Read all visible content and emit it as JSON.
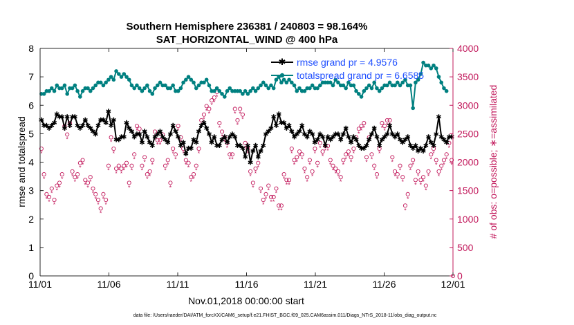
{
  "chart_data": {
    "type": "line",
    "title_line1": "Southern Hemisphere 236381 / 240803 = 98.164%",
    "title_line2": "SAT_HORIZONTAL_WIND @ 400 hPa",
    "xlabel": "Nov.01,2018 00:00:00 start",
    "ylabel_left": "rmse and totalspread",
    "ylabel_right": "# of obs: o=possible; ∗=assimilated",
    "footer": "data file: /Users/raeder/DAI/ATM_forcXX/CAM6_setup/f.e21.FHIST_BGC.f09_025.CAM6assim.011/Diags_NTrS_2018-11/obs_diag_output.nc",
    "xlim": [
      0,
      30
    ],
    "ylim_left": [
      0,
      8
    ],
    "ylim_right": [
      0,
      4000
    ],
    "x_ticks": [
      0,
      5,
      10,
      15,
      20,
      25,
      30
    ],
    "x_tick_labels": [
      "11/01",
      "11/06",
      "11/11",
      "11/16",
      "11/21",
      "11/26",
      "12/01"
    ],
    "y_left_ticks": [
      "0",
      "1",
      "2",
      "3",
      "4",
      "5",
      "6",
      "7",
      "8"
    ],
    "y_right_ticks": [
      "0",
      "500",
      "1000",
      "1500",
      "2000",
      "2500",
      "3000",
      "3500",
      "4000"
    ],
    "legend_placement": "top-right",
    "colors": {
      "rmse": "#000000",
      "spread": "#008080",
      "obs": "#c2185b",
      "axis_right": "#c2185b"
    },
    "series": [
      {
        "name": "rmse grand pr = 4.9576",
        "values": [
          5.5,
          5.3,
          5.3,
          5.2,
          5.3,
          5.4,
          5.7,
          5.6,
          5.6,
          5.2,
          5.6,
          5.3,
          5.6,
          5.6,
          5.3,
          5.2,
          5.3,
          5.5,
          5.3,
          5.2,
          5.1,
          5.0,
          5.3,
          5.5,
          5.5,
          5.4,
          5.8,
          5.3,
          5.5,
          4.8,
          4.8,
          4.9,
          4.9,
          5.4,
          5.2,
          5.1,
          4.9,
          5.0,
          5.0,
          4.7,
          5.1,
          4.9,
          4.7,
          4.6,
          4.9,
          5.0,
          5.1,
          4.9,
          4.8,
          4.7,
          5.0,
          5.3,
          5.1,
          4.9,
          4.6,
          4.7,
          4.3,
          4.5,
          4.5,
          4.8,
          4.7,
          5.1,
          5.3,
          5.4,
          5.2,
          5.0,
          4.7,
          4.9,
          4.6,
          4.6,
          4.8,
          4.9,
          4.7,
          4.9,
          5.0,
          4.9,
          4.6,
          4.6,
          4.5,
          4.2,
          4.6,
          4.0,
          4.4,
          4.6,
          4.2,
          4.4,
          4.6,
          5.0,
          5.1,
          5.2,
          5.6,
          5.3,
          5.7,
          5.4,
          5.4,
          5.2,
          5.3,
          5.1,
          4.9,
          5.0,
          5.1,
          5.3,
          5.0,
          4.9,
          5.1,
          5.0,
          4.7,
          4.8,
          5.0,
          4.9,
          4.6,
          4.9,
          4.8,
          4.9,
          5.0,
          5.0,
          4.8,
          5.0,
          5.2,
          4.9,
          4.7,
          4.9,
          4.8,
          4.6,
          4.5,
          4.5,
          4.6,
          4.8,
          5.0,
          5.2,
          4.9,
          4.6,
          4.8,
          4.9,
          5.0,
          5.3,
          5.0,
          4.9,
          5.0,
          4.8,
          4.7,
          4.8,
          4.9,
          4.6,
          4.5,
          4.6,
          4.4,
          4.5,
          4.4,
          4.6,
          4.9,
          4.7,
          4.6,
          5.0,
          5.6,
          4.9,
          4.8,
          4.7,
          4.9,
          4.9
        ]
      },
      {
        "name": "totalspread grand pr = 6.6585",
        "values": [
          6.4,
          6.4,
          6.5,
          6.5,
          6.6,
          6.5,
          6.7,
          6.6,
          6.6,
          6.7,
          6.4,
          6.6,
          6.6,
          6.7,
          6.5,
          6.3,
          6.5,
          6.6,
          6.6,
          6.5,
          6.6,
          6.7,
          6.8,
          6.8,
          6.7,
          6.8,
          6.9,
          7.0,
          6.9,
          7.2,
          7.1,
          7.0,
          7.1,
          7.0,
          6.9,
          6.7,
          6.6,
          6.7,
          6.6,
          6.5,
          6.6,
          6.7,
          6.5,
          6.4,
          6.6,
          6.7,
          6.8,
          6.7,
          6.7,
          6.6,
          6.6,
          6.7,
          6.5,
          6.5,
          6.6,
          6.8,
          6.9,
          7.0,
          6.9,
          6.8,
          6.6,
          6.7,
          6.8,
          6.8,
          6.9,
          6.7,
          6.5,
          6.5,
          6.6,
          6.5,
          6.4,
          6.3,
          6.5,
          6.6,
          6.5,
          6.5,
          6.5,
          6.5,
          6.4,
          6.5,
          6.4,
          6.5,
          6.6,
          6.5,
          6.6,
          6.7,
          6.8,
          6.7,
          6.6,
          6.7,
          6.6,
          6.9,
          7.0,
          6.8,
          6.9,
          6.8,
          6.9,
          6.8,
          6.7,
          6.5,
          6.6,
          6.5,
          6.5,
          6.6,
          6.6,
          6.7,
          6.6,
          6.6,
          6.7,
          6.8,
          6.8,
          6.8,
          6.8,
          6.7,
          6.9,
          6.8,
          6.7,
          6.7,
          6.6,
          6.8,
          6.7,
          6.7,
          6.5,
          6.4,
          6.3,
          6.5,
          6.6,
          6.7,
          6.6,
          6.8,
          6.6,
          6.5,
          6.6,
          6.7,
          6.7,
          6.8,
          6.7,
          6.7,
          6.8,
          6.7,
          6.8,
          6.9,
          6.7,
          6.7,
          5.9,
          6.8,
          6.9,
          7.1,
          7.5,
          7.4,
          7.4,
          7.3,
          7.4,
          7.3,
          7.0,
          6.8,
          6.6,
          6.5
        ]
      },
      {
        "name": "obs possible",
        "values": [
          2200,
          1750,
          1400,
          1350,
          1500,
          1300,
          1550,
          1600,
          1750,
          2600,
          2450,
          2650,
          1800,
          1700,
          1750,
          1950,
          2000,
          1650,
          1600,
          1700,
          1500,
          1400,
          1300,
          1150,
          1400,
          1300,
          1900,
          2400,
          2200,
          1850,
          1900,
          1850,
          1900,
          1950,
          1600,
          1900,
          2100,
          2600,
          2550,
          1900,
          2050,
          1750,
          1800,
          2000,
          2500,
          2350,
          2350,
          2450,
          1900,
          2000,
          1600,
          2200,
          2100,
          2600,
          2400,
          2200,
          2000,
          1950,
          1700,
          1750,
          1900,
          2200,
          2700,
          2800,
          2950,
          2900,
          3050,
          3100,
          3200,
          2650,
          2500,
          2400,
          2300,
          2100,
          2100,
          2900,
          2700,
          2900,
          2800,
          2300,
          2200,
          1800,
          1600,
          1850,
          1950,
          1500,
          1300,
          1400,
          1550,
          1350,
          1350,
          1500,
          1200,
          1200,
          1750,
          1650,
          1650,
          2200,
          2000,
          2050,
          2150,
          2100,
          1850,
          1700,
          2000,
          1800,
          2200,
          1950,
          2300,
          2150,
          2250,
          2250,
          2000,
          1900,
          1850,
          1800,
          1700,
          2000,
          2100,
          2150,
          2050,
          2200,
          2400,
          2550,
          2600,
          2650,
          2050,
          2400,
          2100,
          1900,
          1750,
          2200,
          2650,
          2600,
          2700,
          2700,
          2050,
          1800,
          1750,
          1900,
          1700,
          1200,
          1400,
          1900,
          2000,
          1650,
          1800,
          1650,
          1700,
          1550,
          1800,
          2100,
          2200,
          2000,
          1800,
          1900,
          2000,
          2100,
          2300,
          2000
        ]
      }
    ]
  }
}
